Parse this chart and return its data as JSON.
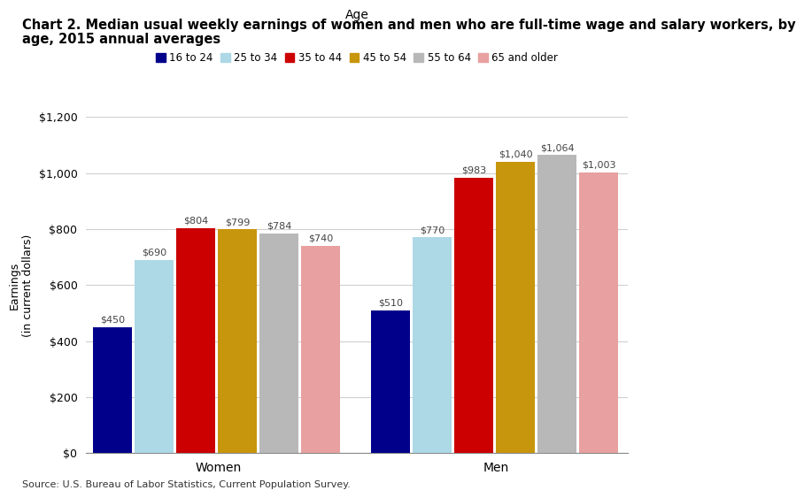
{
  "title_line1": "Chart 2. Median usual weekly earnings of women and men who are full-time wage and salary workers, by",
  "title_line2": "age, 2015 annual averages",
  "ylabel": "Earnings\n(in current dollars)",
  "xlabel_legend": "Age",
  "source": "Source: U.S. Bureau of Labor Statistics, Current Population Survey.",
  "categories": [
    "Women",
    "Men"
  ],
  "age_groups": [
    "16 to 24",
    "25 to 34",
    "35 to 44",
    "45 to 54",
    "55 to 64",
    "65 and older"
  ],
  "colors": [
    "#00008B",
    "#ADD8E6",
    "#CC0000",
    "#C8960C",
    "#B8B8B8",
    "#E8A0A0"
  ],
  "values": {
    "Women": [
      450,
      690,
      804,
      799,
      784,
      740
    ],
    "Men": [
      510,
      770,
      983,
      1040,
      1064,
      1003
    ]
  },
  "ylim": [
    0,
    1200
  ],
  "yticks": [
    0,
    200,
    400,
    600,
    800,
    1000,
    1200
  ],
  "ytick_labels": [
    "$0",
    "$200",
    "$400",
    "$600",
    "$800",
    "$1,000",
    "$1,200"
  ],
  "title_fontsize": 10.5,
  "axis_fontsize": 9,
  "legend_fontsize": 8.5,
  "label_fontsize": 8,
  "source_fontsize": 8
}
